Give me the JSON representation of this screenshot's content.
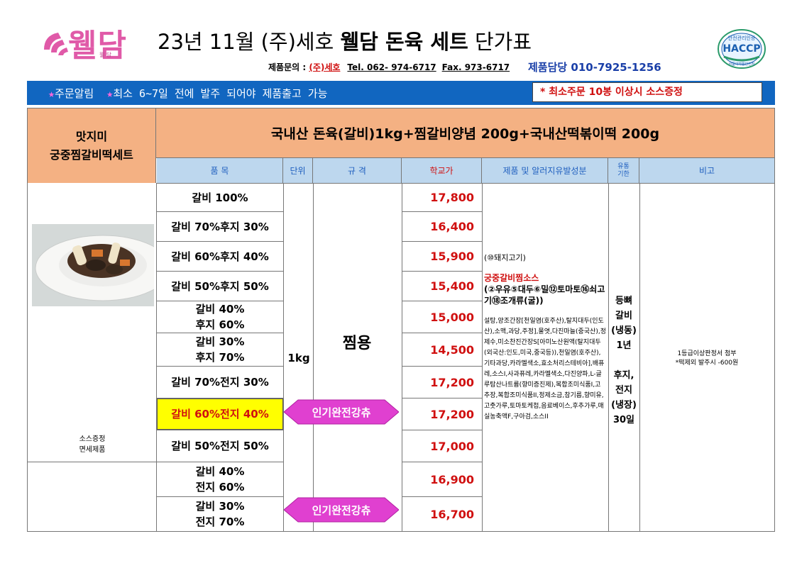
{
  "header": {
    "logo_text": "웰담",
    "logo_sub": "웰 담",
    "title_prefix": "23년 11월 (주)세호 ",
    "title_bold": "웰담 돈육 세트",
    "title_suffix": " 단가표",
    "inquiry_label": "제품문의 : ",
    "company": "(주)세호",
    "tel": "Tel. 062- 974-6717",
    "fax": "Fax. 973-6717",
    "manager": "제품담당  010-7925-1256",
    "haccp_top": "안전관리인증",
    "haccp_main": "HACCP",
    "haccp_bottom": "식품의약품안전처"
  },
  "notice": {
    "star": "★",
    "item1": "주문알림",
    "item2": "최소 6~7일 전에 발주 되어야 제품출고 가능",
    "box": "* 최소주문 10봉 이상시 소스증정"
  },
  "product": {
    "name_line1": "맛지미",
    "name_line2": "궁중찜갈비떡세트",
    "set_desc": "국내산 돈육(갈비)1kg+찜갈비양념 200g+국내산떡볶이떡 200g",
    "photo_note_line1": "소스증정",
    "photo_note_line2": "면세제품"
  },
  "columns": {
    "item": "품      목",
    "unit": "단위",
    "spec": "규      격",
    "price": "학교가",
    "allergy": "제품 및 알러지유발성분",
    "shelf_line1": "유통",
    "shelf_line2": "기한",
    "note": "비고"
  },
  "rows": [
    {
      "line1": "갈비 100%",
      "line2": "",
      "price": "17,800"
    },
    {
      "line1": "갈비 70%후지 30%",
      "line2": "",
      "price": "16,400"
    },
    {
      "line1": "갈비 60%후지 40%",
      "line2": "",
      "price": "15,900"
    },
    {
      "line1": "갈비 50%후지 50%",
      "line2": "",
      "price": "15,400"
    },
    {
      "line1": "갈비 40%",
      "line2": "후지 60%",
      "price": "15,000"
    },
    {
      "line1": "갈비 30%",
      "line2": "후지 70%",
      "price": "14,500"
    },
    {
      "line1": "갈비 70%전지 30%",
      "line2": "",
      "price": "17,200"
    },
    {
      "line1": "갈비 60%전지 40%",
      "line2": "",
      "price": "17,200"
    },
    {
      "line1": "갈비 50%전지 50%",
      "line2": "",
      "price": "17,000"
    },
    {
      "line1": "갈비 40%",
      "line2": "전지 60%",
      "price": "16,900"
    },
    {
      "line1": "갈비 30%",
      "line2": "전지 70%",
      "price": "16,700"
    }
  ],
  "unit_value": "1kg",
  "spec_value": "찜용",
  "badges": [
    "인기완전강츄",
    "인기완전강츄"
  ],
  "badge_color": "#e040d0",
  "highlight_color": "#ffff00",
  "allergy": {
    "meat": "(⑩돼지고기)",
    "sauce_title": "궁중갈비찜소스",
    "sauce_allergens": "(②우유⑤대두⑥밀⑫토마토⑯쇠고기⑱조개류(굴))",
    "ingredients": "설탕,양조간장[천일염(호주산),탈지대두(인도산),소맥,과당,주정],물엿,다진마늘(중국산),정제수,미소찬진간장S[아미노산원액(탈지대두(외국산:인도,미국,중국등)),천일염(호주산),기타과당,카라멜색소,효소처리스테비아],배퓨레,소스I,사과퓨레,카라멜색소,다진양파,L-글루탐산나트륨(향미증진제),복합조미식품I,고추장,복합조미식품II,정제소금,참기름,향미유,고춧가루,토마토케첩,음료베이스,후추가루,매실농축액F,구아검,소스II"
  },
  "shelf": [
    "등뼈",
    "갈비",
    "(냉동)",
    "1년",
    "",
    "후지,",
    "전지",
    "(냉장)",
    "30일"
  ],
  "note": {
    "line1": "1등급이상판정서 첨부",
    "line2": "*떡제외 발주시 -600원"
  }
}
